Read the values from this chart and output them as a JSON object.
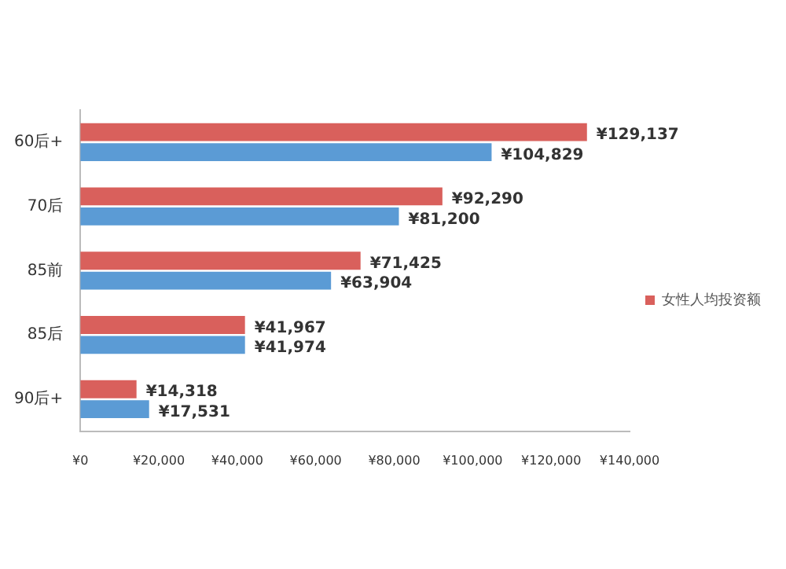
{
  "chart_data": {
    "type": "bar",
    "orientation": "horizontal",
    "categories": [
      "60后+",
      "70后",
      "85前",
      "85后",
      "90后+"
    ],
    "series": [
      {
        "name": "女性人均投资额",
        "color": "#d9605c",
        "values": [
          129137,
          92290,
          71425,
          41967,
          14318
        ],
        "value_labels": [
          "¥129,137",
          "¥92,290",
          "¥71,425",
          "¥41,967",
          "¥14,318"
        ]
      },
      {
        "color": "#5b9bd5",
        "values": [
          104829,
          81200,
          63904,
          41974,
          17531
        ],
        "value_labels": [
          "¥104,829",
          "¥81,200",
          "¥63,904",
          "¥41,974",
          "¥17,531"
        ]
      }
    ],
    "xlim": [
      0,
      140000
    ],
    "xticks": [
      {
        "value": 0,
        "label": "¥0"
      },
      {
        "value": 20000,
        "label": "¥20,000"
      },
      {
        "value": 40000,
        "label": "¥40,000"
      },
      {
        "value": 60000,
        "label": "¥60,000"
      },
      {
        "value": 80000,
        "label": "¥80,000"
      },
      {
        "value": 100000,
        "label": "¥100,000"
      },
      {
        "value": 120000,
        "label": "¥120,000"
      },
      {
        "value": 140000,
        "label": "¥140,000"
      }
    ],
    "grid": false,
    "legend": "right"
  }
}
